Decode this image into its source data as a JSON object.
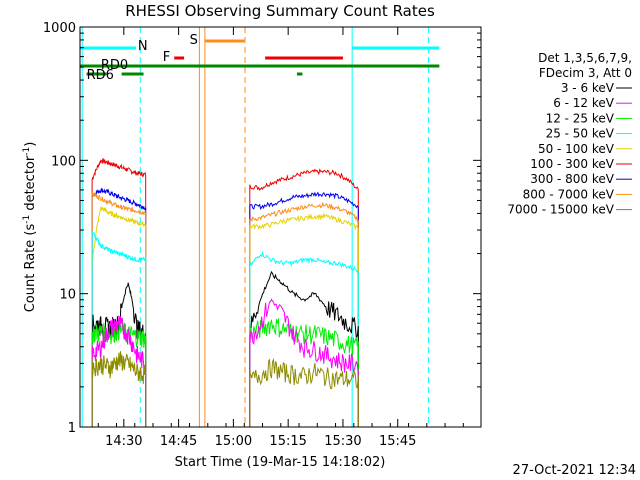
{
  "chart_data": {
    "type": "line",
    "title": "RHESSI Observing Summary Count Rates",
    "xlabel": "Start Time (19-Mar-15 14:18:02)",
    "ylabel_main": "Count Rate (s",
    "ylabel_sup": "-1",
    "ylabel_end": " detector",
    "ylabel_sup2": "-1",
    "ylabel_close": ")",
    "yscale": "log",
    "ylim": [
      1,
      1000
    ],
    "xlim_minutes": [
      14.3,
      16.13
    ],
    "x_ticks": [
      {
        "label": "14:30",
        "value": 14.5
      },
      {
        "label": "14:45",
        "value": 14.75
      },
      {
        "label": "15:00",
        "value": 15.0
      },
      {
        "label": "15:15",
        "value": 15.25
      },
      {
        "label": "15:30",
        "value": 15.5
      },
      {
        "label": "15:45",
        "value": 15.75
      }
    ],
    "y_ticks": [
      {
        "label": "1",
        "value": 1
      },
      {
        "label": "10",
        "value": 10
      },
      {
        "label": "100",
        "value": 100
      },
      {
        "label": "1000",
        "value": 1000
      }
    ],
    "legend": {
      "header1": "Det 1,3,5,6,7,9,",
      "header2": "FDecim 3, Att 0",
      "entries": [
        {
          "label": "3 - 6 keV",
          "color": "#000000"
        },
        {
          "label": "6 - 12 keV",
          "color": "#ff00ff"
        },
        {
          "label": "12 - 25 keV",
          "color": "#00ee00"
        },
        {
          "label": "25 - 50 keV",
          "color": "#00ffff"
        },
        {
          "label": "50 - 100 keV",
          "color": "#e6d200"
        },
        {
          "label": "100 - 300 keV",
          "color": "#ee0000"
        },
        {
          "label": "300 - 800 keV",
          "color": "#0000ee"
        },
        {
          "label": "800 - 7000 keV",
          "color": "#ff8c1a"
        },
        {
          "label": "7000 - 15000 keV",
          "color": "#8b8b00"
        }
      ]
    },
    "segments": [
      {
        "t0": 14.355,
        "t1": 14.6
      },
      {
        "t0": 15.075,
        "t1": 15.57
      }
    ],
    "series": [
      {
        "color": "#ee0000",
        "seg1": [
          72,
          100,
          95,
          90,
          85,
          80,
          78
        ],
        "seg2": [
          64,
          62,
          68,
          72,
          76,
          80,
          82,
          82,
          80,
          72,
          60
        ]
      },
      {
        "color": "#0000ee",
        "seg1": [
          55,
          60,
          57,
          53,
          50,
          47,
          44
        ],
        "seg2": [
          45,
          45,
          47,
          50,
          53,
          54,
          56,
          56,
          54,
          50,
          45
        ]
      },
      {
        "color": "#ff8c1a",
        "seg1": [
          56,
          52,
          48,
          45,
          43,
          42,
          40
        ],
        "seg2": [
          36,
          37,
          39,
          41,
          43,
          45,
          46,
          46,
          44,
          41,
          36
        ]
      },
      {
        "color": "#e6d200",
        "seg1": [
          16,
          44,
          40,
          38,
          36,
          34,
          33
        ],
        "seg2": [
          32,
          32,
          33,
          35,
          36,
          37,
          38,
          38,
          36,
          34,
          31
        ]
      },
      {
        "color": "#00ffff",
        "seg1": [
          29,
          23,
          21,
          20,
          19,
          18,
          18
        ],
        "seg2": [
          16,
          20,
          18,
          17,
          17,
          18,
          18,
          17,
          17,
          16,
          15
        ]
      },
      {
        "color": "#000000",
        "seg1": [
          6,
          5.8,
          5.6,
          6.0,
          12.0,
          5.5,
          5.0
        ],
        "seg2": [
          5.3,
          9.0,
          14.0,
          12.0,
          10.0,
          9.0,
          10.0,
          8.0,
          7.0,
          6.0,
          5.5
        ]
      },
      {
        "color": "#00ee00",
        "seg1": [
          5.0,
          5.2,
          5.0,
          5.4,
          5.0,
          4.8,
          4.6
        ],
        "seg2": [
          5.0,
          5.5,
          6.0,
          5.5,
          5.2,
          5.0,
          5.0,
          4.8,
          4.5,
          4.2,
          4.0
        ]
      },
      {
        "color": "#ff00ff",
        "seg1": [
          3.5,
          4.0,
          5.5,
          6.0,
          5.0,
          3.5,
          3.0
        ],
        "seg2": [
          4.5,
          6.0,
          9.0,
          7.0,
          5.0,
          4.0,
          3.8,
          3.5,
          3.2,
          3.0,
          3.0
        ]
      },
      {
        "color": "#8b8b00",
        "seg1": [
          2.8,
          3.0,
          2.8,
          3.2,
          3.0,
          2.6,
          2.5
        ],
        "seg2": [
          2.2,
          2.5,
          2.8,
          2.6,
          2.5,
          2.4,
          2.6,
          2.4,
          2.3,
          2.3,
          2.2
        ]
      }
    ],
    "vlines": [
      {
        "t": 14.31,
        "color": "#00ffff",
        "dash": false
      },
      {
        "t": 14.575,
        "color": "#00ffff",
        "dash": true
      },
      {
        "t": 14.845,
        "color": "#ff8c1a",
        "dash": false
      },
      {
        "t": 14.87,
        "color": "#ff8c1a",
        "dash": false
      },
      {
        "t": 15.053,
        "color": "#ff8c1a",
        "dash": true
      },
      {
        "t": 15.542,
        "color": "#00ffff",
        "dash": false
      },
      {
        "t": 15.89,
        "color": "#00ffff",
        "dash": true
      }
    ],
    "flag_bars": [
      {
        "name": "N",
        "color": "#00ffff",
        "level": 0,
        "spans": [
          [
            14.3,
            14.555
          ],
          [
            15.542,
            15.94
          ]
        ]
      },
      {
        "name": "F",
        "color": "#ee0000",
        "level": 2,
        "spans": [
          [
            14.73,
            14.775
          ],
          [
            15.145,
            15.5
          ]
        ]
      },
      {
        "name": "S",
        "color": "#ff8c1a",
        "level": -1,
        "spans": [
          [
            14.87,
            15.05
          ]
        ]
      },
      {
        "name": "RD0",
        "color": "#008800",
        "level": 3,
        "spans": [
          [
            14.3,
            15.94
          ]
        ]
      },
      {
        "name": "RD6",
        "color": "#008800",
        "level": 4,
        "spans": [
          [
            14.33,
            14.42
          ],
          [
            14.49,
            14.59
          ],
          [
            15.29,
            15.315
          ]
        ]
      }
    ],
    "footer_date": "27-Oct-2021 12:34"
  }
}
